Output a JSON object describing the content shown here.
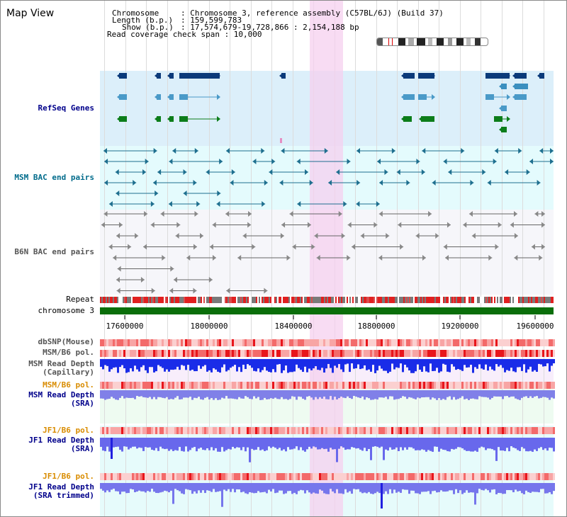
{
  "app": {
    "title": "Map View"
  },
  "info": {
    "chromosome_key": "Chromosome",
    "chromosome_val": ": Chromosome 3, reference assembly (C57BL/6J) (Build 37)",
    "length_key": "Length (b.p.)",
    "length_val": ": 159,599,783",
    "show_key": "Show (b.p.)",
    "show_val": ": 17,574,679-19,728,866 : 2,154,188 bp",
    "coverage": "Read coverage check span : 10,000"
  },
  "tracks": {
    "refseq": "RefSeq Genes",
    "msm_bac": "MSM BAC end pairs",
    "b6n_bac": "B6N BAC end pairs",
    "repeat": "Repeat",
    "chrom": "chromosome 3",
    "dbsnp": "dbSNP(Mouse)",
    "msm_b6_pol_1": "MSM/B6 pol.",
    "msm_depth_cap": "MSM Read Depth\n(Capillary)",
    "msm_b6_pol_2": "MSM/B6 pol.",
    "msm_depth_sra": "MSM Read Depth\n(SRA)",
    "jf1_b6_pol_1": "JF1/B6 pol.",
    "jf1_depth_sra": "JF1 Read Depth\n(SRA)",
    "jf1_b6_pol_2": "JF1/B6 pol.",
    "jf1_depth_trim": "JF1 Read Depth\n(SRA trimmed)"
  },
  "axis": {
    "ticks": [
      "17600000",
      "18000000",
      "18400000",
      "18800000",
      "19200000",
      "19600000"
    ]
  },
  "colors": {
    "label_blue": "#00008b",
    "label_teal": "#006b8b",
    "label_gray": "#555555",
    "label_orange": "#d98c00",
    "highlight": "#f6d0ef",
    "refseq_bg": "#dff0fb",
    "msm_bac_bg": "#e6fbff",
    "b6n_bg": "#f7f7fb",
    "chrom_green": "#006400"
  },
  "icons": [
    "gene-arrow-icon",
    "bac-end-arrow-icon",
    "chromosome-ideogram-icon"
  ]
}
